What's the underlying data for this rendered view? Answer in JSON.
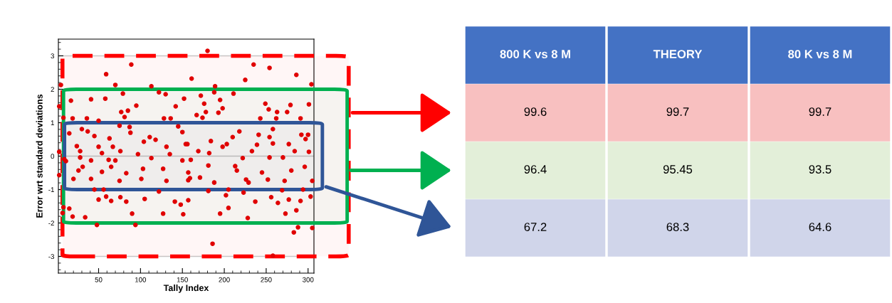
{
  "chart_data": [
    {
      "type": "scatter",
      "xlabel": "Tally Index",
      "ylabel": "Error wrt standard deviations",
      "xlim": [
        2,
        307
      ],
      "ylim": [
        -3.5,
        3.5
      ],
      "xticks": [
        50,
        100,
        150,
        200,
        250,
        300
      ],
      "yticks": [
        -3,
        -2,
        -1,
        0,
        1,
        2,
        3
      ],
      "grid": "y",
      "marker": "circle",
      "series": [
        {
          "color": "#e00000",
          "x": [
            89,
            59,
            5,
            70,
            113,
            161,
            79,
            122,
            130,
            17,
            41,
            58,
            95,
            142,
            152,
            3,
            77,
            85,
            8,
            19,
            36,
            50,
            81,
            128,
            136,
            75,
            87,
            145,
            15,
            30,
            37,
            45,
            63,
            88,
            111,
            118,
            24,
            50,
            67,
            104,
            131,
            154,
            28,
            54,
            76,
            97,
            135,
            3,
            9,
            41,
            70,
            113,
            150,
            180,
            235,
            254,
            286,
            225,
            189,
            304,
            188,
            211,
            172,
            176,
            195,
            249,
            279,
            301,
            198,
            253,
            167,
            178,
            193,
            263,
            275,
            174,
            243,
            262,
            291,
            150,
            218,
            258,
            292,
            300,
            184,
            210,
            241,
            254,
            156,
            203,
            239,
            258,
            277,
            284,
            297,
            169,
            182,
            198,
            233,
            301,
            160,
            222,
            254,
            270,
            181,
            213,
            296,
            11,
            28,
            62,
            31,
            65,
            103,
            127,
            3,
            26,
            54,
            83,
            20,
            41,
            75,
            101,
            131,
            157,
            45,
            56,
            122,
            59,
            50,
            65,
            76,
            83,
            105,
            141,
            157,
            8,
            15,
            7,
            19,
            34,
            90,
            127,
            151,
            48,
            94,
            157,
            159,
            171,
            188,
            215,
            226,
            229,
            245,
            252,
            272,
            280,
            305,
            181,
            205,
            223,
            269,
            294,
            202,
            237,
            256,
            264,
            277,
            291,
            303,
            148,
            205,
            195,
            273,
            286,
            228,
            288,
            283,
            305,
            186,
            258
          ],
          "values": [
            2.74,
            2.45,
            2.13,
            2.13,
            2.09,
            2.32,
            1.87,
            1.91,
            1.85,
            1.66,
            1.7,
            1.72,
            1.51,
            1.49,
            1.72,
            1.49,
            1.32,
            1.36,
            1.15,
            1.13,
            1.13,
            1.06,
            1.17,
            1.13,
            1.13,
            0.91,
            0.87,
            0.89,
            0.68,
            0.81,
            0.74,
            0.6,
            0.53,
            0.7,
            0.57,
            0.49,
            0.3,
            0.28,
            0.28,
            0.43,
            0.28,
            0.36,
            0.15,
            0.09,
            0.15,
            0.06,
            0.06,
            0.13,
            -0.09,
            -0.13,
            -0.13,
            -0.06,
            -0.13,
            3.15,
            2.74,
            2.64,
            2.43,
            2.28,
            2.09,
            2.15,
            1.91,
            1.87,
            1.81,
            1.57,
            1.68,
            1.57,
            1.53,
            1.55,
            1.43,
            1.4,
            1.23,
            1.32,
            1.3,
            1.32,
            1.32,
            1.15,
            1.13,
            1.13,
            1.13,
            0.72,
            0.74,
            0.81,
            0.64,
            0.64,
            0.45,
            0.57,
            0.64,
            0.57,
            0.36,
            0.36,
            0.34,
            0.38,
            0.36,
            0.15,
            0.51,
            0.15,
            0.09,
            0.28,
            0.15,
            0.13,
            -0.11,
            -0.06,
            -0.04,
            -0.04,
            -0.28,
            -0.3,
            -0.32,
            -0.15,
            -0.04,
            -0.11,
            -0.32,
            -0.32,
            -0.38,
            -0.38,
            -0.57,
            -0.43,
            -0.47,
            -0.51,
            -0.68,
            -0.68,
            -0.74,
            -0.68,
            -0.74,
            -0.72,
            -1.0,
            -1.0,
            -1.06,
            -1.21,
            -1.3,
            -1.34,
            -1.23,
            -1.36,
            -1.28,
            -1.36,
            -1.32,
            -1.53,
            -1.57,
            -1.7,
            -1.81,
            -1.83,
            -1.72,
            -1.72,
            -1.74,
            -2.06,
            -2.06,
            -0.49,
            -0.66,
            -0.64,
            -0.79,
            -0.43,
            -0.7,
            -0.79,
            -0.49,
            -0.7,
            -0.74,
            -0.43,
            -0.74,
            -1.04,
            -1.0,
            -1.09,
            -1.02,
            -1.0,
            -1.17,
            -1.36,
            -1.23,
            -1.4,
            -1.3,
            -1.34,
            -1.21,
            -1.45,
            -1.55,
            -1.72,
            -1.72,
            -1.62,
            -1.85,
            -2.13,
            -2.28,
            -2.15,
            -2.62,
            -2.98
          ]
        }
      ],
      "bands": [
        {
          "axis": "y",
          "from": -3,
          "to": 3,
          "color": "#ff0000"
        },
        {
          "axis": "y",
          "from": -2,
          "to": 2,
          "color": "#00b050"
        },
        {
          "axis": "y",
          "from": -1,
          "to": 1,
          "color": "#2f5597"
        }
      ]
    },
    {
      "type": "other",
      "categories": [
        "800 K vs 8 M",
        "THEORY",
        "80 K vs 8 M"
      ],
      "data_labels": true,
      "series": [
        {
          "color": "#f8c0c0",
          "values": [
            99.6,
            99.7,
            99.7
          ]
        },
        {
          "color": "#e3efd9",
          "values": [
            96.4,
            95.45,
            93.5
          ]
        },
        {
          "color": "#d0d5ea",
          "values": [
            67.2,
            68.3,
            64.6
          ]
        }
      ]
    }
  ]
}
